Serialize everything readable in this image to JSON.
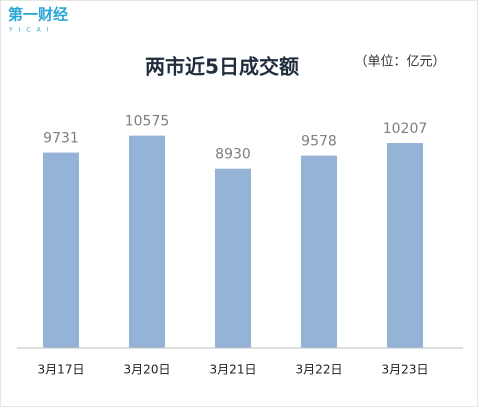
{
  "logo": {
    "text": "第一财经",
    "sub": "YICAI"
  },
  "chart_data": {
    "type": "bar",
    "title": "两市近5日成交额",
    "subtitle": "（单位：亿元）",
    "categories": [
      "3月17日",
      "3月20日",
      "3月21日",
      "3月22日",
      "3月23日"
    ],
    "values": [
      9731,
      10575,
      8930,
      9578,
      10207
    ],
    "color": "#95b3d7",
    "ylim": [
      0,
      12000
    ],
    "grid": false
  }
}
